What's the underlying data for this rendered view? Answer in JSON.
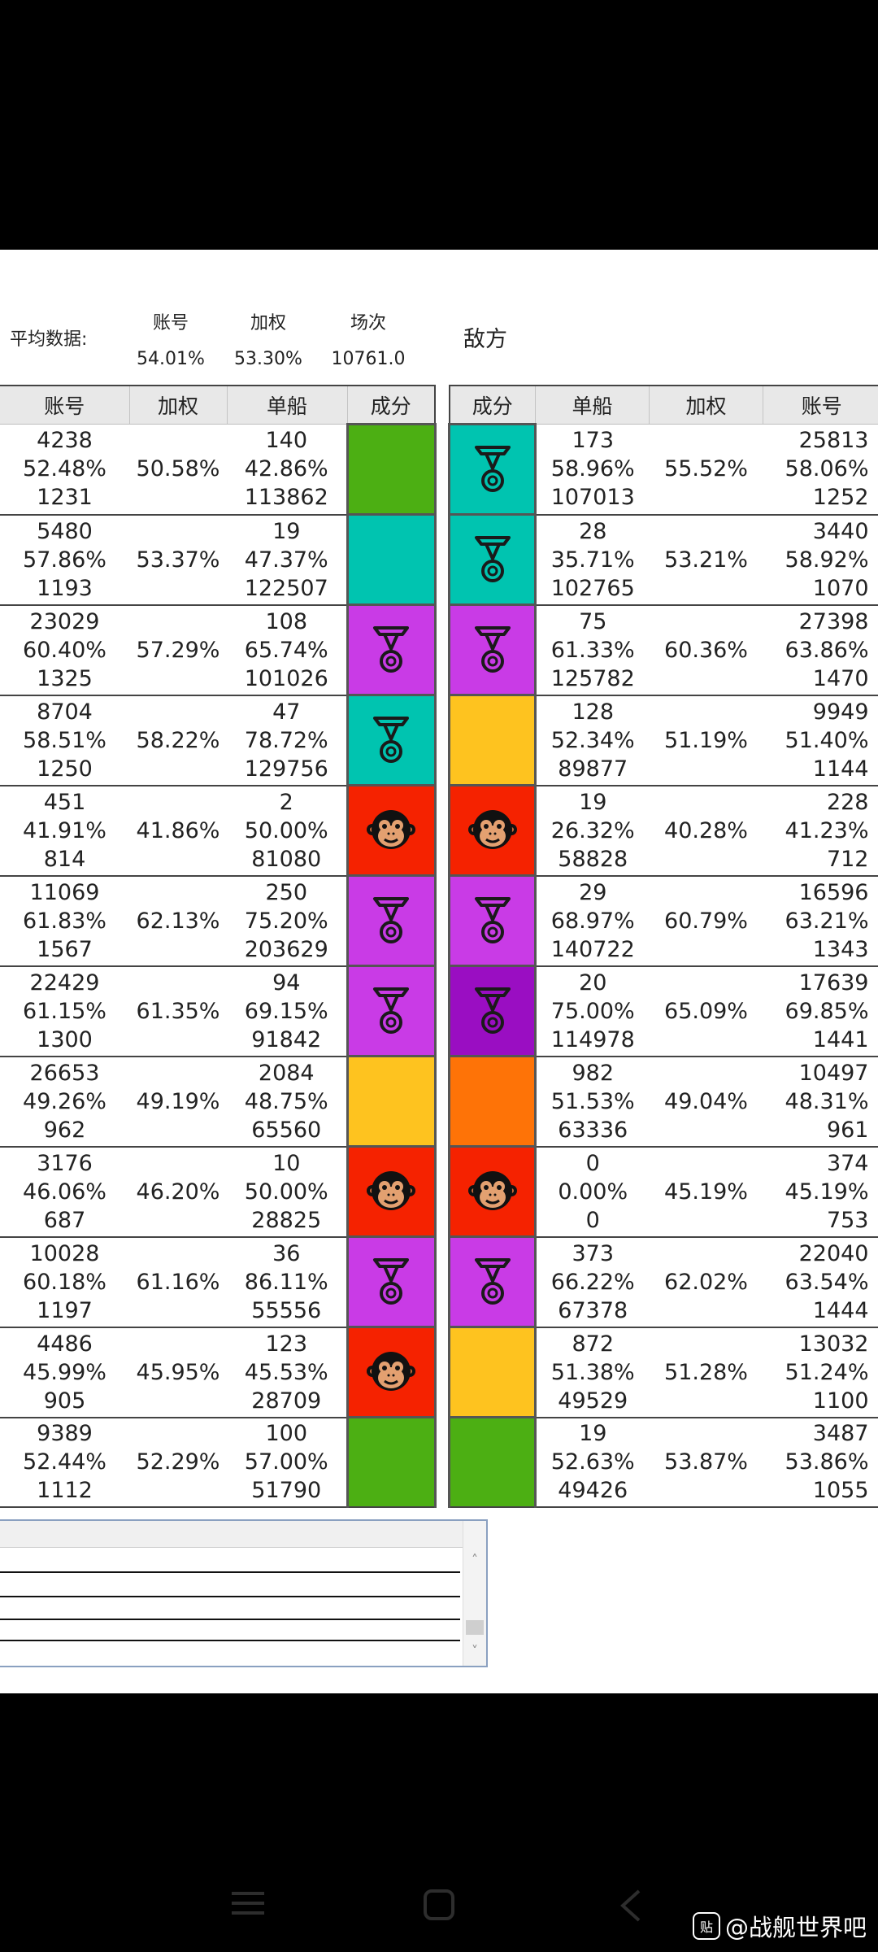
{
  "summary": {
    "avg_label": "平均数据:",
    "col_account": "账号",
    "col_weighted": "加权",
    "col_battles": "场次",
    "account_value": "54.01%",
    "weighted_value": "53.30%",
    "battles_value": "10761.0",
    "enemy_label": "敌方"
  },
  "left_table": {
    "headers": [
      "账号",
      "加权",
      "单船",
      "成分"
    ],
    "rows": [
      {
        "acc_battles": "4238",
        "acc_wr": "52.48%",
        "acc_dmg": "1231",
        "weighted": "50.58%",
        "ship_battles": "140",
        "ship_wr": "42.86%",
        "ship_dmg": "113862",
        "comp_color": "#4caf13",
        "comp_icon": ""
      },
      {
        "acc_battles": "5480",
        "acc_wr": "57.86%",
        "acc_dmg": "1193",
        "weighted": "53.37%",
        "ship_battles": "19",
        "ship_wr": "47.37%",
        "ship_dmg": "122507",
        "comp_color": "#00c4b0",
        "comp_icon": ""
      },
      {
        "acc_battles": "23029",
        "acc_wr": "60.40%",
        "acc_dmg": "1325",
        "weighted": "57.29%",
        "ship_battles": "108",
        "ship_wr": "65.74%",
        "ship_dmg": "101026",
        "comp_color": "#c93be6",
        "comp_icon": "medal-icon"
      },
      {
        "acc_battles": "8704",
        "acc_wr": "58.51%",
        "acc_dmg": "1250",
        "weighted": "58.22%",
        "ship_battles": "47",
        "ship_wr": "78.72%",
        "ship_dmg": "129756",
        "comp_color": "#00c4b0",
        "comp_icon": "medal-icon"
      },
      {
        "acc_battles": "451",
        "acc_wr": "41.91%",
        "acc_dmg": "814",
        "weighted": "41.86%",
        "ship_battles": "2",
        "ship_wr": "50.00%",
        "ship_dmg": "81080",
        "comp_color": "#f52200",
        "comp_icon": "monkey-icon"
      },
      {
        "acc_battles": "11069",
        "acc_wr": "61.83%",
        "acc_dmg": "1567",
        "weighted": "62.13%",
        "ship_battles": "250",
        "ship_wr": "75.20%",
        "ship_dmg": "203629",
        "comp_color": "#c93be6",
        "comp_icon": "medal-icon"
      },
      {
        "acc_battles": "22429",
        "acc_wr": "61.15%",
        "acc_dmg": "1300",
        "weighted": "61.35%",
        "ship_battles": "94",
        "ship_wr": "69.15%",
        "ship_dmg": "91842",
        "comp_color": "#c93be6",
        "comp_icon": "medal-icon"
      },
      {
        "acc_battles": "26653",
        "acc_wr": "49.26%",
        "acc_dmg": "962",
        "weighted": "49.19%",
        "ship_battles": "2084",
        "ship_wr": "48.75%",
        "ship_dmg": "65560",
        "comp_color": "#fec31f",
        "comp_icon": ""
      },
      {
        "acc_battles": "3176",
        "acc_wr": "46.06%",
        "acc_dmg": "687",
        "weighted": "46.20%",
        "ship_battles": "10",
        "ship_wr": "50.00%",
        "ship_dmg": "28825",
        "comp_color": "#f52200",
        "comp_icon": "monkey-icon"
      },
      {
        "acc_battles": "10028",
        "acc_wr": "60.18%",
        "acc_dmg": "1197",
        "weighted": "61.16%",
        "ship_battles": "36",
        "ship_wr": "86.11%",
        "ship_dmg": "55556",
        "comp_color": "#c93be6",
        "comp_icon": "medal-icon"
      },
      {
        "acc_battles": "4486",
        "acc_wr": "45.99%",
        "acc_dmg": "905",
        "weighted": "45.95%",
        "ship_battles": "123",
        "ship_wr": "45.53%",
        "ship_dmg": "28709",
        "comp_color": "#f52200",
        "comp_icon": "monkey-icon"
      },
      {
        "acc_battles": "9389",
        "acc_wr": "52.44%",
        "acc_dmg": "1112",
        "weighted": "52.29%",
        "ship_battles": "100",
        "ship_wr": "57.00%",
        "ship_dmg": "51790",
        "comp_color": "#4caf13",
        "comp_icon": ""
      }
    ]
  },
  "right_table": {
    "headers": [
      "成分",
      "单船",
      "加权",
      "账号"
    ],
    "rows": [
      {
        "comp_color": "#00c4b0",
        "comp_icon": "medal-icon",
        "ship_battles": "173",
        "ship_wr": "58.96%",
        "ship_dmg": "107013",
        "weighted": "55.52%",
        "acc_battles": "25813",
        "acc_wr": "58.06%",
        "acc_dmg": "1252"
      },
      {
        "comp_color": "#00c4b0",
        "comp_icon": "medal-icon",
        "ship_battles": "28",
        "ship_wr": "35.71%",
        "ship_dmg": "102765",
        "weighted": "53.21%",
        "acc_battles": "3440",
        "acc_wr": "58.92%",
        "acc_dmg": "1070"
      },
      {
        "comp_color": "#c93be6",
        "comp_icon": "medal-icon",
        "ship_battles": "75",
        "ship_wr": "61.33%",
        "ship_dmg": "125782",
        "weighted": "60.36%",
        "acc_battles": "27398",
        "acc_wr": "63.86%",
        "acc_dmg": "1470"
      },
      {
        "comp_color": "#fec31f",
        "comp_icon": "",
        "ship_battles": "128",
        "ship_wr": "52.34%",
        "ship_dmg": "89877",
        "weighted": "51.19%",
        "acc_battles": "9949",
        "acc_wr": "51.40%",
        "acc_dmg": "1144"
      },
      {
        "comp_color": "#f52200",
        "comp_icon": "monkey-icon",
        "ship_battles": "19",
        "ship_wr": "26.32%",
        "ship_dmg": "58828",
        "weighted": "40.28%",
        "acc_battles": "228",
        "acc_wr": "41.23%",
        "acc_dmg": "712"
      },
      {
        "comp_color": "#c93be6",
        "comp_icon": "medal-icon",
        "ship_battles": "29",
        "ship_wr": "68.97%",
        "ship_dmg": "140722",
        "weighted": "60.79%",
        "acc_battles": "16596",
        "acc_wr": "63.21%",
        "acc_dmg": "1343"
      },
      {
        "comp_color": "#9a0ec2",
        "comp_icon": "medal-icon",
        "ship_battles": "20",
        "ship_wr": "75.00%",
        "ship_dmg": "114978",
        "weighted": "65.09%",
        "acc_battles": "17639",
        "acc_wr": "69.85%",
        "acc_dmg": "1441"
      },
      {
        "comp_color": "#fe7307",
        "comp_icon": "",
        "ship_battles": "982",
        "ship_wr": "51.53%",
        "ship_dmg": "63336",
        "weighted": "49.04%",
        "acc_battles": "10497",
        "acc_wr": "48.31%",
        "acc_dmg": "961"
      },
      {
        "comp_color": "#f52200",
        "comp_icon": "monkey-icon",
        "ship_battles": "0",
        "ship_wr": "0.00%",
        "ship_dmg": "0",
        "weighted": "45.19%",
        "acc_battles": "374",
        "acc_wr": "45.19%",
        "acc_dmg": "753"
      },
      {
        "comp_color": "#c93be6",
        "comp_icon": "medal-icon",
        "ship_battles": "373",
        "ship_wr": "66.22%",
        "ship_dmg": "67378",
        "weighted": "62.02%",
        "acc_battles": "22040",
        "acc_wr": "63.54%",
        "acc_dmg": "1444"
      },
      {
        "comp_color": "#fec31f",
        "comp_icon": "",
        "ship_battles": "872",
        "ship_wr": "51.38%",
        "ship_dmg": "49529",
        "weighted": "51.28%",
        "acc_battles": "13032",
        "acc_wr": "51.24%",
        "acc_dmg": "1100"
      },
      {
        "comp_color": "#4caf13",
        "comp_icon": "",
        "ship_battles": "19",
        "ship_wr": "52.63%",
        "ship_dmg": "49426",
        "weighted": "53.87%",
        "acc_battles": "3487",
        "acc_wr": "53.86%",
        "acc_dmg": "1055"
      }
    ]
  },
  "listbox": {
    "scroll_up_icon": "chevron-up-icon",
    "scroll_down_icon": "chevron-down-icon"
  },
  "navbar": {
    "menu_icon": "menu-icon",
    "home_icon": "home-icon",
    "back_icon": "back-icon"
  },
  "watermark": {
    "logo_text": "贴",
    "text": "@战舰世界吧"
  }
}
